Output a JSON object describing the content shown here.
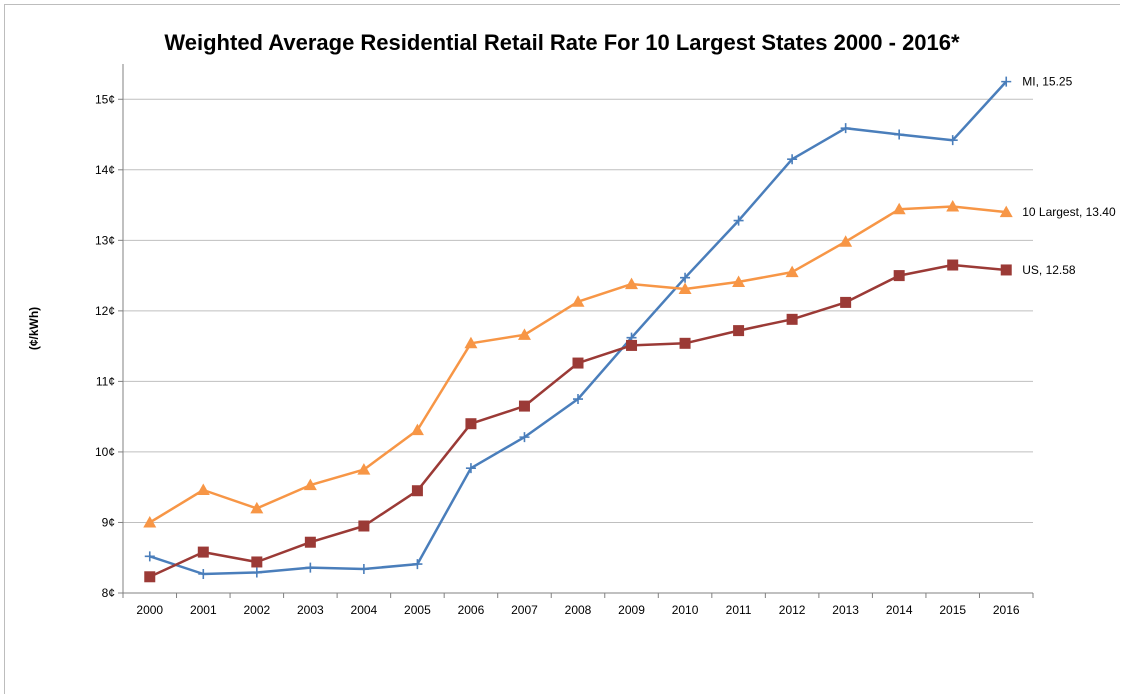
{
  "chart_data": {
    "type": "line",
    "title": "Weighted Average Residential Retail Rate For 10 Largest States 2000 - 2016*",
    "xlabel": "",
    "ylabel": "(¢/kWh)",
    "x": [
      "2000",
      "2001",
      "2002",
      "2003",
      "2004",
      "2005",
      "2006",
      "2007",
      "2008",
      "2009",
      "2010",
      "2011",
      "2012",
      "2013",
      "2014",
      "2015",
      "2016"
    ],
    "ylim": [
      8,
      15.5
    ],
    "yticks": [
      8,
      9,
      10,
      11,
      12,
      13,
      14,
      15
    ],
    "yticklabels": [
      "8¢",
      "9¢",
      "10¢",
      "11¢",
      "12¢",
      "13¢",
      "14¢",
      "15¢"
    ],
    "grid": true,
    "legend": "none",
    "series": [
      {
        "name": "MI",
        "color": "#4a7ebb",
        "marker": "plus",
        "end_label": "MI, 15.25",
        "values": [
          8.52,
          8.27,
          8.29,
          8.36,
          8.34,
          8.41,
          9.77,
          10.21,
          10.75,
          11.62,
          12.47,
          13.28,
          14.15,
          14.59,
          14.5,
          14.42,
          15.25
        ]
      },
      {
        "name": "10 Largest",
        "color": "#f79646",
        "marker": "triangle",
        "end_label": "10 Largest, 13.40",
        "values": [
          9.0,
          9.46,
          9.2,
          9.53,
          9.75,
          10.31,
          11.54,
          11.66,
          12.13,
          12.38,
          12.31,
          12.41,
          12.55,
          12.98,
          13.44,
          13.48,
          13.4
        ]
      },
      {
        "name": "US",
        "color": "#9b3a36",
        "marker": "square",
        "end_label": "US, 12.58",
        "values": [
          8.23,
          8.58,
          8.44,
          8.72,
          8.95,
          9.45,
          10.4,
          10.65,
          11.26,
          11.51,
          11.54,
          11.72,
          11.88,
          12.12,
          12.5,
          12.65,
          12.58
        ]
      }
    ]
  }
}
